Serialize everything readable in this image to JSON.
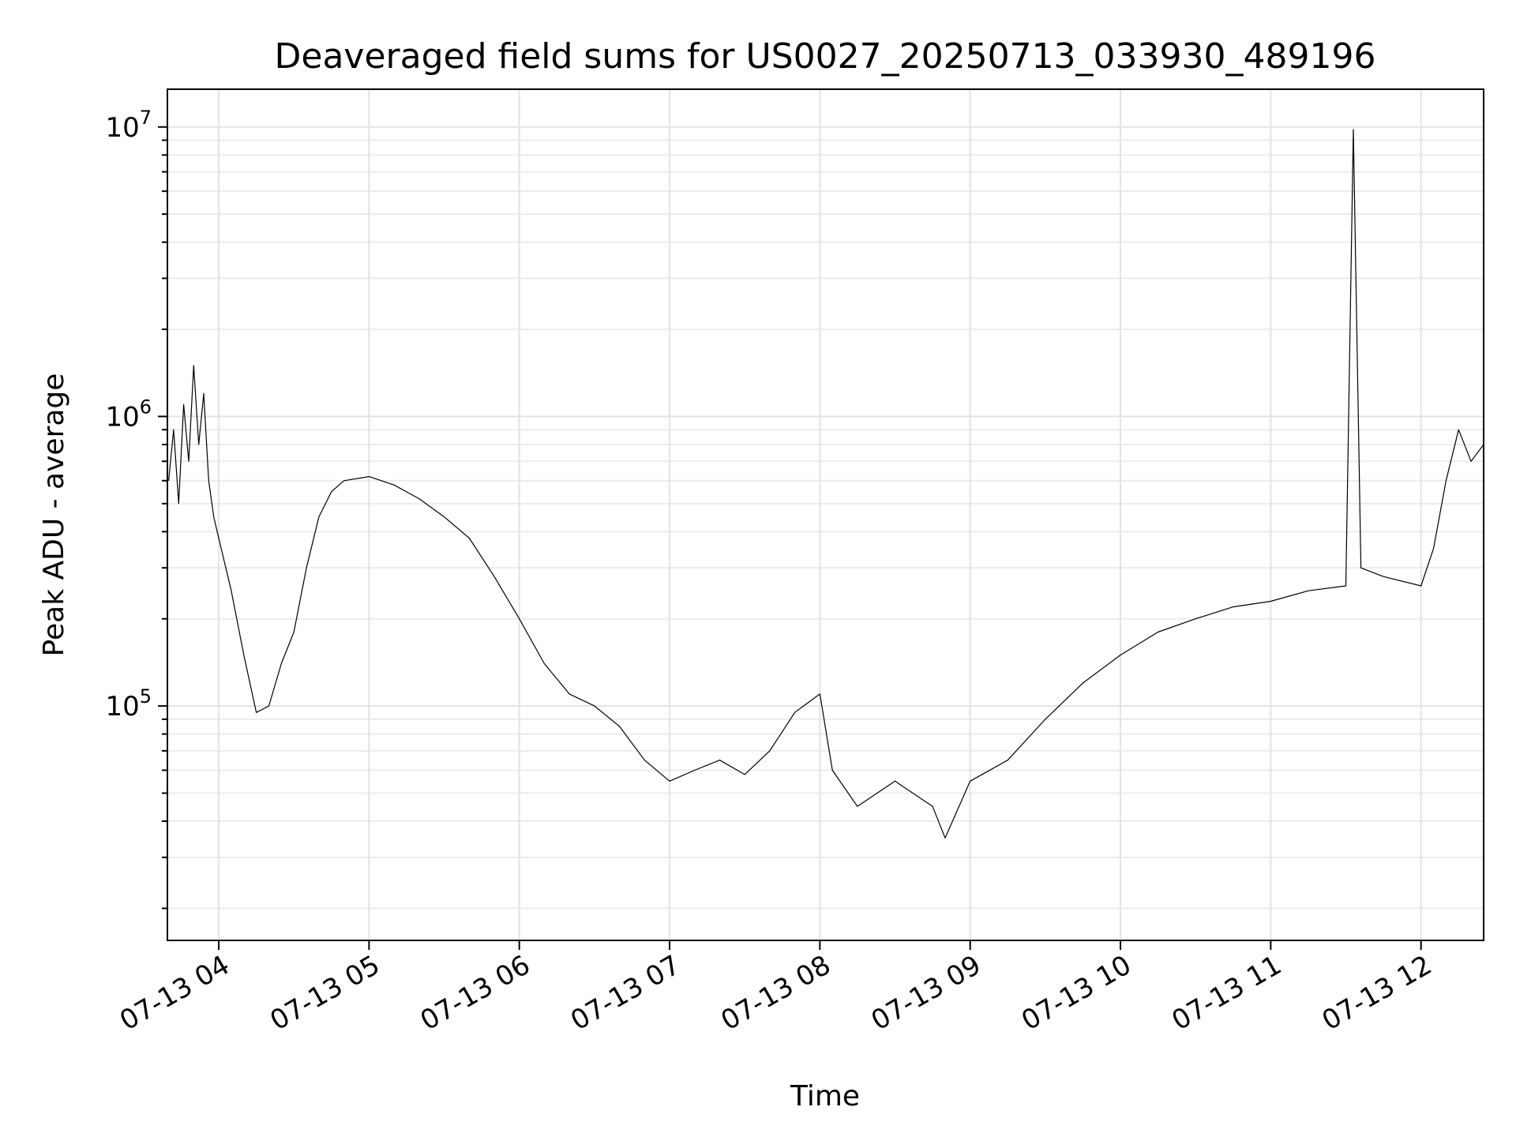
{
  "chart_data": {
    "type": "line",
    "title": "Deaveraged field sums for US0027_20250713_033930_489196",
    "xlabel": "Time",
    "ylabel": "Peak ADU - average",
    "yscale": "log",
    "grid": true,
    "grid_minor_y": true,
    "x_range": [
      "2025-07-13 03:39:30",
      "2025-07-13 12:25:00"
    ],
    "ylim": [
      15500,
      13500000
    ],
    "x_ticks": [
      {
        "value": "2025-07-13 04:00",
        "label": "07-13 04"
      },
      {
        "value": "2025-07-13 05:00",
        "label": "07-13 05"
      },
      {
        "value": "2025-07-13 06:00",
        "label": "07-13 06"
      },
      {
        "value": "2025-07-13 07:00",
        "label": "07-13 07"
      },
      {
        "value": "2025-07-13 08:00",
        "label": "07-13 08"
      },
      {
        "value": "2025-07-13 09:00",
        "label": "07-13 09"
      },
      {
        "value": "2025-07-13 10:00",
        "label": "07-13 10"
      },
      {
        "value": "2025-07-13 11:00",
        "label": "07-13 11"
      },
      {
        "value": "2025-07-13 12:00",
        "label": "07-13 12"
      }
    ],
    "y_ticks": [
      {
        "value": 100000,
        "base": "10",
        "exp": "5"
      },
      {
        "value": 1000000,
        "base": "10",
        "exp": "6"
      },
      {
        "value": 10000000,
        "base": "10",
        "exp": "7"
      }
    ],
    "series": [
      {
        "color": "#000000",
        "points": [
          [
            "2025-07-13 03:40",
            600000
          ],
          [
            "2025-07-13 03:42",
            900000
          ],
          [
            "2025-07-13 03:44",
            500000
          ],
          [
            "2025-07-13 03:46",
            1100000
          ],
          [
            "2025-07-13 03:48",
            700000
          ],
          [
            "2025-07-13 03:50",
            1500000
          ],
          [
            "2025-07-13 03:52",
            800000
          ],
          [
            "2025-07-13 03:54",
            1200000
          ],
          [
            "2025-07-13 03:56",
            600000
          ],
          [
            "2025-07-13 03:58",
            450000
          ],
          [
            "2025-07-13 04:00",
            380000
          ],
          [
            "2025-07-13 04:05",
            250000
          ],
          [
            "2025-07-13 04:10",
            150000
          ],
          [
            "2025-07-13 04:15",
            95000
          ],
          [
            "2025-07-13 04:20",
            100000
          ],
          [
            "2025-07-13 04:25",
            140000
          ],
          [
            "2025-07-13 04:30",
            180000
          ],
          [
            "2025-07-13 04:35",
            300000
          ],
          [
            "2025-07-13 04:40",
            450000
          ],
          [
            "2025-07-13 04:45",
            550000
          ],
          [
            "2025-07-13 04:50",
            600000
          ],
          [
            "2025-07-13 05:00",
            620000
          ],
          [
            "2025-07-13 05:10",
            580000
          ],
          [
            "2025-07-13 05:20",
            520000
          ],
          [
            "2025-07-13 05:30",
            450000
          ],
          [
            "2025-07-13 05:40",
            380000
          ],
          [
            "2025-07-13 05:50",
            280000
          ],
          [
            "2025-07-13 06:00",
            200000
          ],
          [
            "2025-07-13 06:10",
            140000
          ],
          [
            "2025-07-13 06:20",
            110000
          ],
          [
            "2025-07-13 06:30",
            100000
          ],
          [
            "2025-07-13 06:40",
            85000
          ],
          [
            "2025-07-13 06:50",
            65000
          ],
          [
            "2025-07-13 07:00",
            55000
          ],
          [
            "2025-07-13 07:10",
            60000
          ],
          [
            "2025-07-13 07:20",
            65000
          ],
          [
            "2025-07-13 07:30",
            58000
          ],
          [
            "2025-07-13 07:40",
            70000
          ],
          [
            "2025-07-13 07:50",
            95000
          ],
          [
            "2025-07-13 08:00",
            110000
          ],
          [
            "2025-07-13 08:05",
            60000
          ],
          [
            "2025-07-13 08:15",
            45000
          ],
          [
            "2025-07-13 08:30",
            55000
          ],
          [
            "2025-07-13 08:45",
            45000
          ],
          [
            "2025-07-13 08:50",
            35000
          ],
          [
            "2025-07-13 09:00",
            55000
          ],
          [
            "2025-07-13 09:15",
            65000
          ],
          [
            "2025-07-13 09:30",
            90000
          ],
          [
            "2025-07-13 09:45",
            120000
          ],
          [
            "2025-07-13 10:00",
            150000
          ],
          [
            "2025-07-13 10:15",
            180000
          ],
          [
            "2025-07-13 10:30",
            200000
          ],
          [
            "2025-07-13 10:45",
            220000
          ],
          [
            "2025-07-13 11:00",
            230000
          ],
          [
            "2025-07-13 11:15",
            250000
          ],
          [
            "2025-07-13 11:30",
            260000
          ],
          [
            "2025-07-13 11:33",
            9800000
          ],
          [
            "2025-07-13 11:36",
            300000
          ],
          [
            "2025-07-13 11:45",
            280000
          ],
          [
            "2025-07-13 12:00",
            260000
          ],
          [
            "2025-07-13 12:05",
            350000
          ],
          [
            "2025-07-13 12:10",
            600000
          ],
          [
            "2025-07-13 12:15",
            900000
          ],
          [
            "2025-07-13 12:20",
            700000
          ],
          [
            "2025-07-13 12:25",
            800000
          ]
        ]
      }
    ]
  }
}
